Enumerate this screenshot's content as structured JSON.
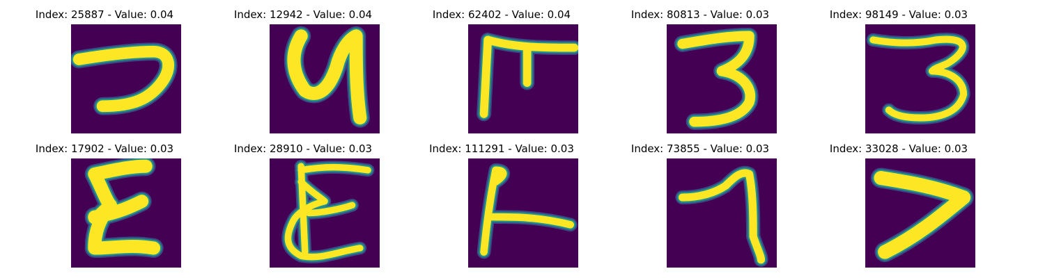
{
  "colors": {
    "background": "#440154",
    "mid": "#21918c",
    "stroke": "#fde725",
    "edge": "#3b528b"
  },
  "panels": [
    {
      "title": "Index: 25887 - Value: 0.04",
      "glyph": "hook-shape"
    },
    {
      "title": "Index: 12942 - Value: 0.04",
      "glyph": "loop-letter"
    },
    {
      "title": "Index: 62402 - Value: 0.04",
      "glyph": "bar-with-legs"
    },
    {
      "title": "Index: 80813 - Value: 0.03",
      "glyph": "three"
    },
    {
      "title": "Index: 98149 - Value: 0.03",
      "glyph": "three-wide"
    },
    {
      "title": "Index: 17902 - Value: 0.03",
      "glyph": "epsilon"
    },
    {
      "title": "Index: 28910 - Value: 0.03",
      "glyph": "epsilon-thin"
    },
    {
      "title": "Index: 111291 - Value: 0.03",
      "glyph": "corner"
    },
    {
      "title": "Index: 73855 - Value: 0.03",
      "glyph": "seven"
    },
    {
      "title": "Index: 33028 - Value: 0.03",
      "glyph": "chevron"
    }
  ]
}
